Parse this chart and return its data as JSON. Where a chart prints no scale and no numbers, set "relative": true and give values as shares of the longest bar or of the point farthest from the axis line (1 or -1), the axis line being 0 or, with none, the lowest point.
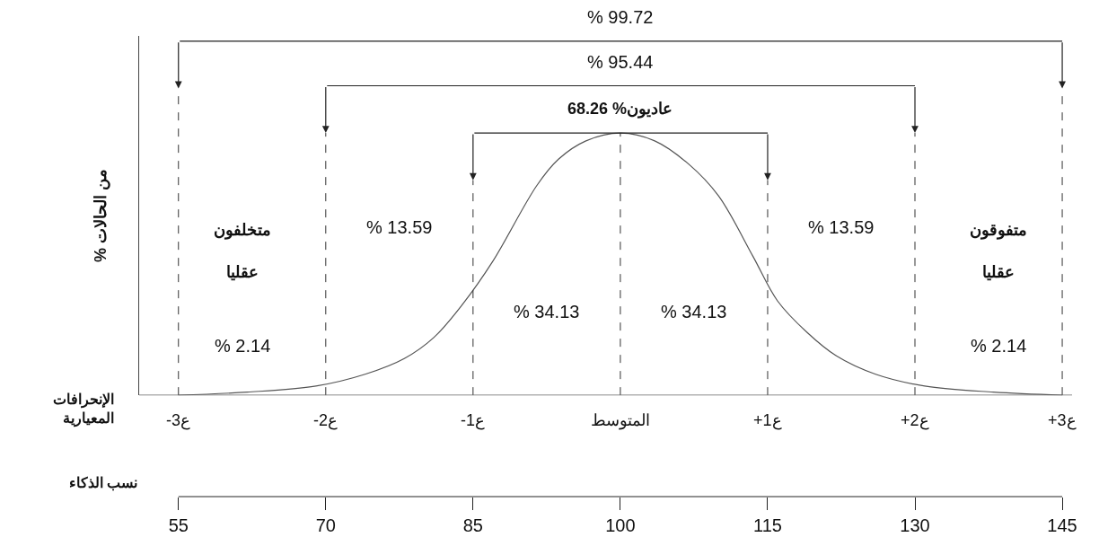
{
  "chart_data": {
    "type": "line",
    "relative": true,
    "x": [
      55,
      62,
      69,
      74,
      78,
      81,
      84,
      87,
      91.5,
      93.7,
      96.5,
      100,
      103.5,
      107,
      110,
      113.5,
      116,
      119,
      122,
      126,
      131,
      138,
      145
    ],
    "series": [
      {
        "color": "#555555",
        "values": [
          0,
          0.012,
          0.035,
          0.08,
          0.14,
          0.22,
          0.35,
          0.51,
          0.8,
          0.9,
          0.97,
          1,
          0.97,
          0.88,
          0.76,
          0.53,
          0.36,
          0.24,
          0.15,
          0.08,
          0.035,
          0.012,
          0
        ]
      }
    ],
    "xlim": [
      51,
      146
    ],
    "xticks": [
      55,
      70,
      85,
      100,
      115,
      130,
      145
    ],
    "xlabel": "نسب الذكاء",
    "ylabel": "% من الحالات",
    "annotations": [
      "% 99.72",
      "% 95.44",
      "عاديون% 68.26",
      "متخلفون",
      "عقليا",
      "% 2.14",
      "% 13.59",
      "% 34.13",
      "% 34.13",
      "% 13.59",
      "متفوقون",
      "عقليا",
      "% 2.14",
      "الإنحرافات\nالمعيارية",
      "-3ع",
      "-2ع",
      "-1ع",
      "المتوسط",
      "+1ع",
      "+2ع",
      "+3ع"
    ],
    "legend": false,
    "grid": "x",
    "marker": "none",
    "line_style": "solid"
  }
}
